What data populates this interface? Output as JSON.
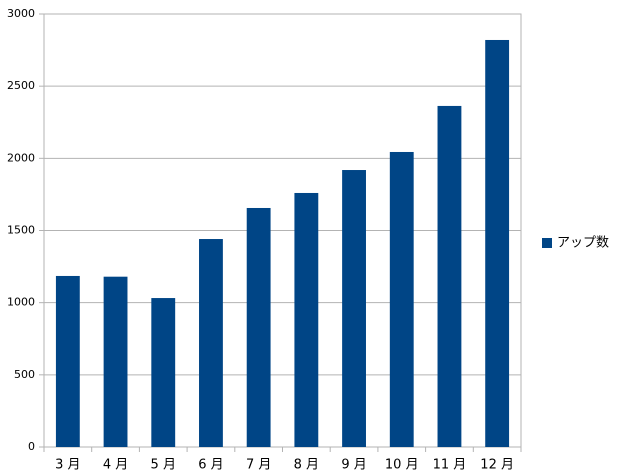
{
  "chart_data": {
    "type": "bar",
    "categories": [
      "3 月",
      "4 月",
      "5 月",
      "6 月",
      "7 月",
      "8 月",
      "9 月",
      "10 月",
      "11 月",
      "12 月"
    ],
    "series": [
      {
        "name": "アップ数",
        "color": "#004586",
        "values": [
          1185,
          1180,
          1032,
          1441,
          1656,
          1760,
          1919,
          2044,
          2363,
          2820
        ]
      }
    ],
    "ylim": [
      0,
      3000
    ],
    "yticks": [
      0,
      500,
      1000,
      1500,
      2000,
      2500,
      3000
    ],
    "grid": true,
    "legend": "right"
  }
}
